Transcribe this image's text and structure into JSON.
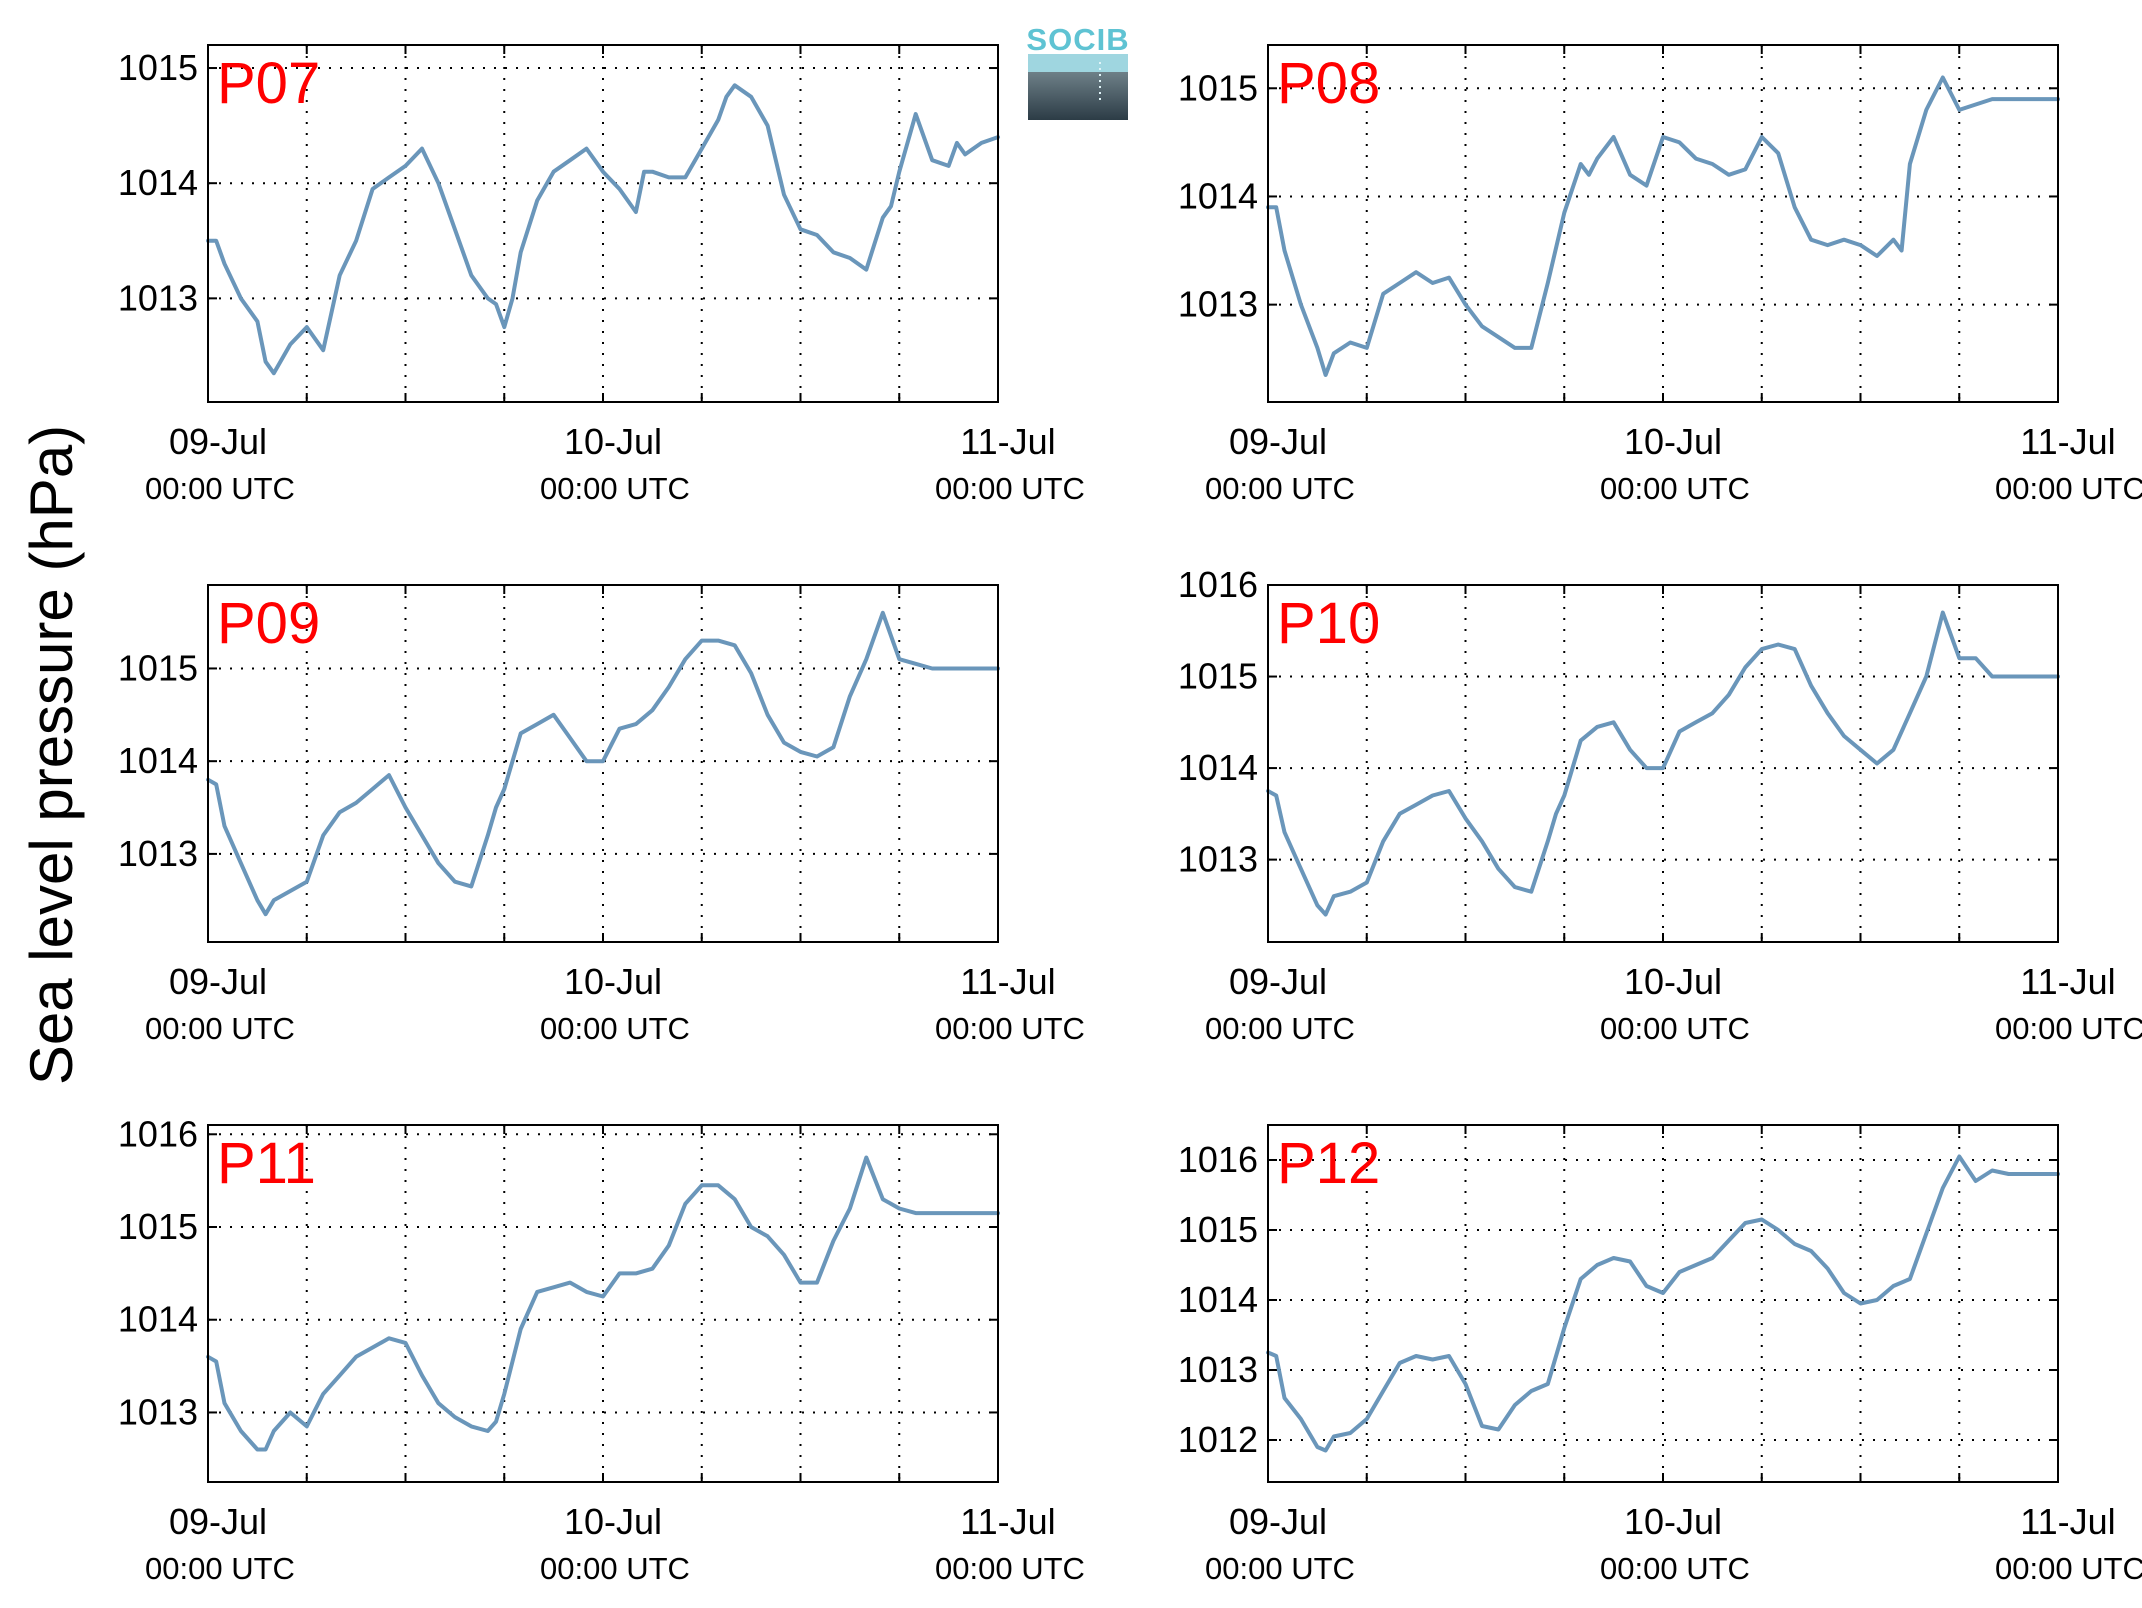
{
  "figure": {
    "ylabel": "Sea level pressure (hPa)",
    "logo_text": "SOCIB",
    "colors": {
      "line": "#6a96ba",
      "panel_label": "#ff0000",
      "logo_accent": "#5fc3d3"
    }
  },
  "chart_data": [
    {
      "type": "line",
      "title": "P07",
      "xlabel": "",
      "ylabel": "Sea level pressure (hPa)",
      "xlim": [
        "2013-07-09 00:00",
        "2013-07-11 00:00"
      ],
      "ylim": [
        1012.1,
        1015.2
      ],
      "yticks": [
        1013,
        1014,
        1015
      ],
      "xticks": [
        {
          "top": "09-Jul",
          "bottom": "00:00 UTC"
        },
        {
          "top": "10-Jul",
          "bottom": "00:00 UTC"
        },
        {
          "top": "11-Jul",
          "bottom": "00:00 UTC"
        }
      ],
      "grid": true,
      "series": [
        {
          "x": [
            0,
            0.5,
            1,
            2,
            3,
            3.5,
            4,
            5,
            6,
            7,
            8,
            9,
            10,
            11,
            12,
            13,
            14,
            15,
            16,
            17,
            17.5,
            18,
            18.5,
            19,
            20,
            21,
            22,
            23,
            24,
            25,
            26,
            26.5,
            27,
            28,
            29,
            30,
            31,
            31.5,
            32,
            33,
            34,
            35,
            36,
            37,
            38,
            39,
            40,
            41,
            41.5,
            42,
            43,
            44,
            45,
            45.5,
            46,
            47,
            48
          ],
          "y": [
            1013.5,
            1013.5,
            1013.3,
            1013.0,
            1012.8,
            1012.45,
            1012.35,
            1012.6,
            1012.75,
            1012.55,
            1013.2,
            1013.5,
            1013.95,
            1014.05,
            1014.15,
            1014.3,
            1014.0,
            1013.6,
            1013.2,
            1013.0,
            1012.95,
            1012.75,
            1013.0,
            1013.4,
            1013.85,
            1014.1,
            1014.2,
            1014.3,
            1014.1,
            1013.95,
            1013.75,
            1014.1,
            1014.1,
            1014.05,
            1014.05,
            1014.3,
            1014.55,
            1014.75,
            1014.85,
            1014.75,
            1014.5,
            1013.9,
            1013.6,
            1013.55,
            1013.4,
            1013.35,
            1013.25,
            1013.7,
            1013.8,
            1014.1,
            1014.6,
            1014.2,
            1014.15,
            1014.35,
            1014.25,
            1014.35,
            1014.4
          ]
        }
      ]
    },
    {
      "type": "line",
      "title": "P08",
      "xlabel": "",
      "ylabel": "Sea level pressure (hPa)",
      "xlim": [
        "2013-07-09 00:00",
        "2013-07-11 00:00"
      ],
      "ylim": [
        1012.1,
        1015.4
      ],
      "yticks": [
        1013,
        1014,
        1015
      ],
      "xticks": [
        {
          "top": "09-Jul",
          "bottom": "00:00 UTC"
        },
        {
          "top": "10-Jul",
          "bottom": "00:00 UTC"
        },
        {
          "top": "11-Jul",
          "bottom": "00:00 UTC"
        }
      ],
      "grid": true,
      "series": [
        {
          "x": [
            0,
            0.5,
            1,
            2,
            3,
            3.5,
            4,
            5,
            6,
            7,
            8,
            9,
            10,
            11,
            12,
            13,
            14,
            15,
            16,
            17,
            18,
            19,
            19.5,
            20,
            21,
            22,
            23,
            24,
            25,
            26,
            27,
            28,
            29,
            30,
            31,
            32,
            33,
            34,
            35,
            36,
            37,
            38,
            38.5,
            39,
            40,
            41,
            42,
            43,
            44,
            45,
            46,
            47,
            48
          ],
          "y": [
            1013.9,
            1013.9,
            1013.5,
            1013.0,
            1012.6,
            1012.35,
            1012.55,
            1012.65,
            1012.6,
            1013.1,
            1013.2,
            1013.3,
            1013.2,
            1013.25,
            1013.0,
            1012.8,
            1012.7,
            1012.6,
            1012.6,
            1013.2,
            1013.85,
            1014.3,
            1014.2,
            1014.35,
            1014.55,
            1014.2,
            1014.1,
            1014.55,
            1014.5,
            1014.35,
            1014.3,
            1014.2,
            1014.25,
            1014.55,
            1014.4,
            1013.9,
            1013.6,
            1013.55,
            1013.6,
            1013.55,
            1013.45,
            1013.6,
            1013.5,
            1014.3,
            1014.8,
            1015.1,
            1014.8,
            1014.85,
            1014.9,
            1014.9,
            1014.9,
            1014.9,
            1014.9
          ]
        }
      ]
    },
    {
      "type": "line",
      "title": "P09",
      "xlabel": "",
      "ylabel": "Sea level pressure (hPa)",
      "xlim": [
        "2013-07-09 00:00",
        "2013-07-11 00:00"
      ],
      "ylim": [
        1012.05,
        1015.9
      ],
      "yticks": [
        1013,
        1014,
        1015
      ],
      "xticks": [
        {
          "top": "09-Jul",
          "bottom": "00:00 UTC"
        },
        {
          "top": "10-Jul",
          "bottom": "00:00 UTC"
        },
        {
          "top": "11-Jul",
          "bottom": "00:00 UTC"
        }
      ],
      "grid": true,
      "series": [
        {
          "x": [
            0,
            0.5,
            1,
            2,
            3,
            3.5,
            4,
            5,
            6,
            7,
            8,
            9,
            10,
            11,
            12,
            13,
            14,
            15,
            16,
            17,
            17.5,
            18,
            19,
            20,
            21,
            22,
            23,
            24,
            25,
            26,
            27,
            28,
            29,
            30,
            31,
            32,
            33,
            34,
            35,
            36,
            37,
            38,
            39,
            40,
            41,
            42,
            43,
            44,
            45,
            45.5,
            46,
            47,
            48
          ],
          "y": [
            1013.8,
            1013.75,
            1013.3,
            1012.9,
            1012.5,
            1012.35,
            1012.5,
            1012.6,
            1012.7,
            1013.2,
            1013.45,
            1013.55,
            1013.7,
            1013.85,
            1013.5,
            1013.2,
            1012.9,
            1012.7,
            1012.65,
            1013.2,
            1013.5,
            1013.7,
            1014.3,
            1014.4,
            1014.5,
            1014.25,
            1014.0,
            1014.0,
            1014.35,
            1014.4,
            1014.55,
            1014.8,
            1015.1,
            1015.3,
            1015.3,
            1015.25,
            1014.95,
            1014.5,
            1014.2,
            1014.1,
            1014.05,
            1014.15,
            1014.7,
            1015.1,
            1015.6,
            1015.1,
            1015.05,
            1015.0,
            1015.0,
            1015.0,
            1015.0,
            1015.0,
            1015.0
          ]
        }
      ]
    },
    {
      "type": "line",
      "title": "P10",
      "xlabel": "",
      "ylabel": "Sea level pressure (hPa)",
      "xlim": [
        "2013-07-09 00:00",
        "2013-07-11 00:00"
      ],
      "ylim": [
        1012.1,
        1016.0
      ],
      "yticks": [
        1013,
        1014,
        1015,
        1016
      ],
      "xticks": [
        {
          "top": "09-Jul",
          "bottom": "00:00 UTC"
        },
        {
          "top": "10-Jul",
          "bottom": "00:00 UTC"
        },
        {
          "top": "11-Jul",
          "bottom": "00:00 UTC"
        }
      ],
      "grid": true,
      "series": [
        {
          "x": [
            0,
            0.5,
            1,
            2,
            3,
            3.5,
            4,
            5,
            6,
            7,
            8,
            9,
            10,
            11,
            12,
            13,
            14,
            15,
            16,
            17,
            17.5,
            18,
            19,
            20,
            21,
            22,
            23,
            24,
            25,
            26,
            27,
            28,
            29,
            30,
            31,
            32,
            33,
            34,
            35,
            36,
            37,
            38,
            39,
            40,
            41,
            42,
            43,
            44,
            45,
            46,
            47,
            48
          ],
          "y": [
            1013.75,
            1013.7,
            1013.3,
            1012.9,
            1012.5,
            1012.4,
            1012.6,
            1012.65,
            1012.75,
            1013.2,
            1013.5,
            1013.6,
            1013.7,
            1013.75,
            1013.45,
            1013.2,
            1012.9,
            1012.7,
            1012.65,
            1013.2,
            1013.5,
            1013.7,
            1014.3,
            1014.45,
            1014.5,
            1014.2,
            1014.0,
            1014.0,
            1014.4,
            1014.5,
            1014.6,
            1014.8,
            1015.1,
            1015.3,
            1015.35,
            1015.3,
            1014.9,
            1014.6,
            1014.35,
            1014.2,
            1014.05,
            1014.2,
            1014.6,
            1015.0,
            1015.7,
            1015.2,
            1015.2,
            1015.0,
            1015.0,
            1015.0,
            1015.0,
            1015.0
          ]
        }
      ]
    },
    {
      "type": "line",
      "title": "P11",
      "xlabel": "",
      "ylabel": "Sea level pressure (hPa)",
      "xlim": [
        "2013-07-09 00:00",
        "2013-07-11 00:00"
      ],
      "ylim": [
        1012.25,
        1016.1
      ],
      "yticks": [
        1013,
        1014,
        1015,
        1016
      ],
      "xticks": [
        {
          "top": "09-Jul",
          "bottom": "00:00 UTC"
        },
        {
          "top": "10-Jul",
          "bottom": "00:00 UTC"
        },
        {
          "top": "11-Jul",
          "bottom": "00:00 UTC"
        }
      ],
      "grid": true,
      "series": [
        {
          "x": [
            0,
            0.5,
            1,
            2,
            3,
            3.5,
            4,
            5,
            6,
            7,
            8,
            9,
            10,
            11,
            12,
            13,
            14,
            15,
            16,
            17,
            17.5,
            18,
            19,
            20,
            21,
            22,
            23,
            24,
            25,
            26,
            27,
            28,
            29,
            30,
            31,
            32,
            33,
            34,
            35,
            36,
            37,
            38,
            39,
            40,
            41,
            42,
            43,
            44,
            45,
            46,
            47,
            48
          ],
          "y": [
            1013.6,
            1013.55,
            1013.1,
            1012.8,
            1012.6,
            1012.6,
            1012.8,
            1013.0,
            1012.85,
            1013.2,
            1013.4,
            1013.6,
            1013.7,
            1013.8,
            1013.75,
            1013.4,
            1013.1,
            1012.95,
            1012.85,
            1012.8,
            1012.9,
            1013.2,
            1013.9,
            1014.3,
            1014.35,
            1014.4,
            1014.3,
            1014.25,
            1014.5,
            1014.5,
            1014.55,
            1014.8,
            1015.25,
            1015.45,
            1015.45,
            1015.3,
            1015.0,
            1014.9,
            1014.7,
            1014.4,
            1014.4,
            1014.85,
            1015.2,
            1015.75,
            1015.3,
            1015.2,
            1015.15,
            1015.15,
            1015.15,
            1015.15,
            1015.15,
            1015.15
          ]
        }
      ]
    },
    {
      "type": "line",
      "title": "P12",
      "xlabel": "",
      "ylabel": "Sea level pressure (hPa)",
      "xlim": [
        "2013-07-09 00:00",
        "2013-07-11 00:00"
      ],
      "ylim": [
        1011.4,
        1016.5
      ],
      "yticks": [
        1012,
        1013,
        1014,
        1015,
        1016
      ],
      "xticks": [
        {
          "top": "09-Jul",
          "bottom": "00:00 UTC"
        },
        {
          "top": "10-Jul",
          "bottom": "00:00 UTC"
        },
        {
          "top": "11-Jul",
          "bottom": "00:00 UTC"
        }
      ],
      "grid": true,
      "series": [
        {
          "x": [
            0,
            0.5,
            1,
            2,
            3,
            3.5,
            4,
            5,
            6,
            7,
            8,
            9,
            10,
            11,
            12,
            13,
            14,
            15,
            16,
            17,
            18,
            19,
            20,
            21,
            22,
            23,
            24,
            25,
            26,
            27,
            28,
            29,
            30,
            31,
            32,
            33,
            34,
            35,
            36,
            37,
            38,
            39,
            40,
            41,
            42,
            43,
            44,
            45,
            46,
            47,
            48
          ],
          "y": [
            1013.25,
            1013.2,
            1012.6,
            1012.3,
            1011.9,
            1011.85,
            1012.05,
            1012.1,
            1012.3,
            1012.7,
            1013.1,
            1013.2,
            1013.15,
            1013.2,
            1012.8,
            1012.2,
            1012.15,
            1012.5,
            1012.7,
            1012.8,
            1013.6,
            1014.3,
            1014.5,
            1014.6,
            1014.55,
            1014.2,
            1014.1,
            1014.4,
            1014.5,
            1014.6,
            1014.85,
            1015.1,
            1015.15,
            1015.0,
            1014.8,
            1014.7,
            1014.45,
            1014.1,
            1013.95,
            1014.0,
            1014.2,
            1014.3,
            1014.95,
            1015.6,
            1016.05,
            1015.7,
            1015.85,
            1015.8,
            1015.8,
            1015.8,
            1015.8
          ]
        }
      ]
    }
  ]
}
